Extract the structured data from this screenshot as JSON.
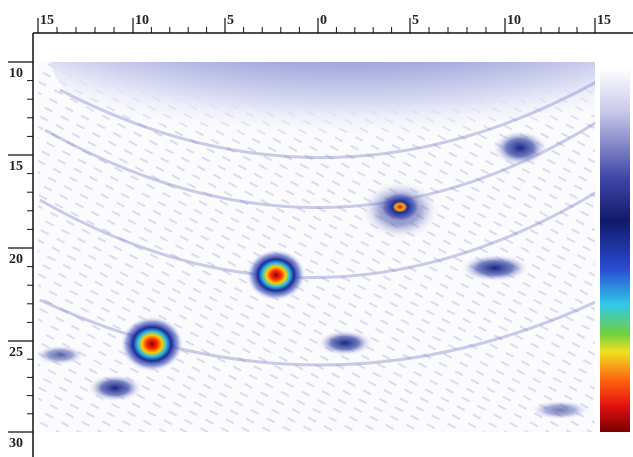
{
  "x_axis": {
    "ticks": [
      "15",
      "10",
      "5",
      "0",
      "5",
      "10",
      "15"
    ]
  },
  "y_axis": {
    "ticks": [
      "10",
      "15",
      "20",
      "25",
      "30"
    ]
  }
}
